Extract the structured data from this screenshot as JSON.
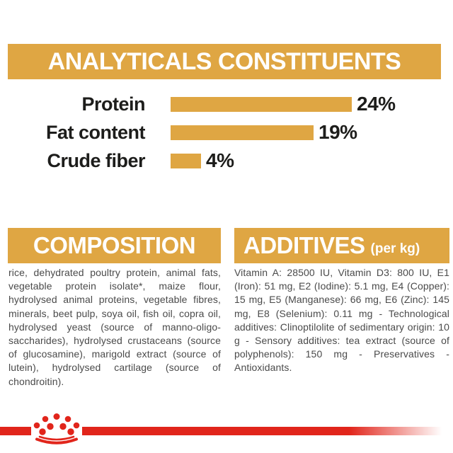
{
  "colors": {
    "gold_accent": "#DFA643",
    "brand_red": "#E1251B",
    "heading_text": "#FFFFFF",
    "chart_text": "#1D1D1B",
    "body_text": "#4A4A4A"
  },
  "analytical_constituents": {
    "title": "ANALYTICALS CONSTITUENTS",
    "rows": [
      {
        "label": "Protein",
        "value": 24,
        "value_label": "24%"
      },
      {
        "label": "Fat content",
        "value": 19,
        "value_label": "19%"
      },
      {
        "label": "Crude fiber",
        "value": 4,
        "value_label": "4%"
      }
    ]
  },
  "chart_data": {
    "type": "bar",
    "orientation": "horizontal",
    "title": "ANALYTICALS CONSTITUENTS",
    "categories": [
      "Protein",
      "Fat content",
      "Crude fiber"
    ],
    "values": [
      24,
      19,
      4
    ],
    "data_labels": [
      "24%",
      "19%",
      "4%"
    ],
    "unit": "%",
    "xlabel": "",
    "ylabel": "",
    "xlim": [
      0,
      30
    ],
    "grid": false,
    "legend": false,
    "bar_color": "#DFA643"
  },
  "composition": {
    "title": "COMPOSITION",
    "body": "rice, dehydrated poultry protein, animal fats, vegetable protein isolate*, maize flour, hydrolysed animal proteins, vegetable fibres, minerals, beet pulp, soya oil, fish oil, copra oil, hydrolysed yeast (source of manno-oligo-saccharides), hydrolysed crustaceans (source of glucosamine), marigold extract (source of lutein), hydrolysed cartilage (source of chondroitin)."
  },
  "additives": {
    "title": "ADDITIVES",
    "title_suffix": "(per kg)",
    "body": "Vitamin A: 28500 IU, Vitamin D3: 800 IU, E1 (Iron): 51 mg, E2 (Iodine): 5.1 mg, E4 (Copper): 15 mg, E5 (Manganese): 66 mg, E6 (Zinc): 145 mg, E8 (Selenium): 0.11 mg - Technological additives: Clinoptilolite of sedimentary origin: 10 g - Sensory additives: tea extract (source of polyphenols): 150 mg - Preservatives - Antioxidants.",
    "body2": ""
  },
  "footer": {
    "brand_icon": "royal-canin-crown"
  }
}
